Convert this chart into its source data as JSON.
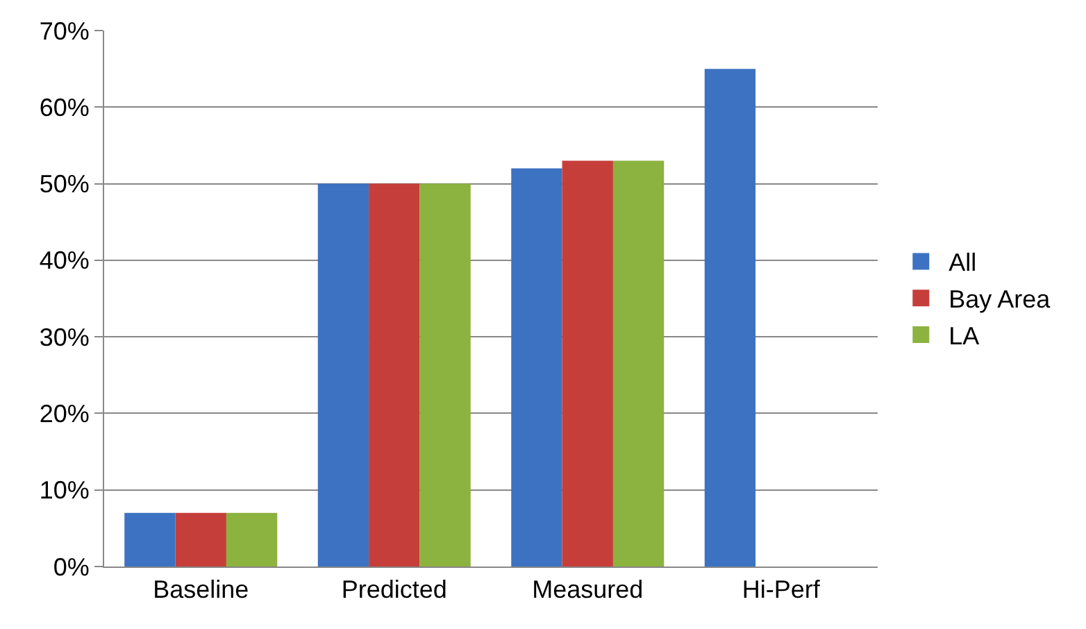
{
  "chart_data": {
    "type": "bar",
    "categories": [
      "Baseline",
      "Predicted",
      "Measured",
      "Hi-Perf"
    ],
    "series": [
      {
        "name": "All",
        "color": "#3d72c2",
        "values": [
          7,
          50,
          52,
          65
        ]
      },
      {
        "name": "Bay Area",
        "color": "#c63e3a",
        "values": [
          7,
          50,
          53,
          null
        ]
      },
      {
        "name": "LA",
        "color": "#8cb23f",
        "values": [
          7,
          50,
          53,
          null
        ]
      }
    ],
    "ylim": [
      0,
      70
    ],
    "yticks": [
      {
        "value": 0,
        "label": "0%"
      },
      {
        "value": 10,
        "label": "10%"
      },
      {
        "value": 20,
        "label": "20%"
      },
      {
        "value": 30,
        "label": "30%"
      },
      {
        "value": 40,
        "label": "40%"
      },
      {
        "value": 50,
        "label": "50%"
      },
      {
        "value": 60,
        "label": "60%"
      },
      {
        "value": 70,
        "label": "70%"
      }
    ],
    "grid": "y",
    "legend": "right"
  }
}
